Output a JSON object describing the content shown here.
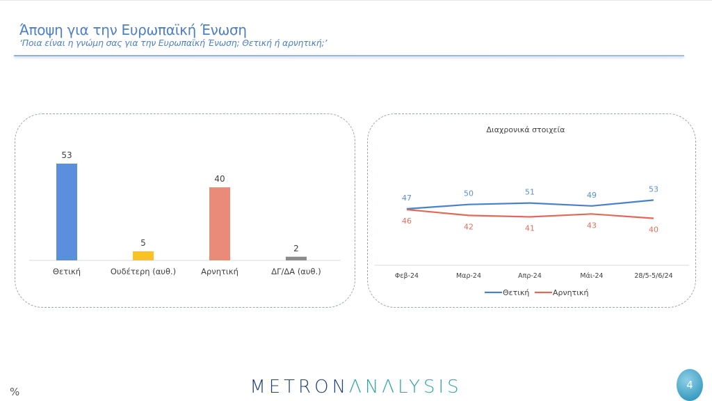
{
  "header": {
    "title": "Άποψη για την Ευρωπαϊκή Ένωση",
    "subtitle": "‘Ποια είναι η γνώμη σας για την Ευρωπαϊκή Ένωση; Θετική ή αρνητική;’"
  },
  "footer": {
    "unit": "%",
    "logo_part1": "METRON",
    "logo_part2": "ΛNΛLYSIS",
    "page_number": "4"
  },
  "colors": {
    "positive": "#5b8fdd",
    "neutral": "#f7c325",
    "negative": "#ea8a78",
    "dk": "#8c8c8c",
    "line_positive": "#4a7fd0",
    "line_negative": "#e06a58"
  },
  "chart_data": [
    {
      "type": "bar",
      "title": "",
      "categories": [
        "Θετική",
        "Ουδέτερη (αυθ.)",
        "Αρνητική",
        "ΔΓ/ΔΑ (αυθ.)"
      ],
      "values": [
        53,
        5,
        40,
        2
      ],
      "xlabel": "",
      "ylabel": "%",
      "ylim": [
        0,
        55
      ],
      "grid": false,
      "data_labels": true
    },
    {
      "type": "line",
      "title": "Διαχρονικά στοιχεία",
      "categories": [
        "Φεβ-24",
        "Μαρ-24",
        "Απρ-24",
        "Μάι-24",
        "28/5-5/6/24"
      ],
      "series": [
        {
          "name": "Θετική",
          "values": [
            47,
            50,
            51,
            49,
            53
          ]
        },
        {
          "name": "Αρνητική",
          "values": [
            46,
            42,
            41,
            43,
            40
          ]
        }
      ],
      "xlabel": "",
      "ylabel": "%",
      "legend_position": "bottom",
      "grid": false,
      "data_labels": true
    }
  ]
}
